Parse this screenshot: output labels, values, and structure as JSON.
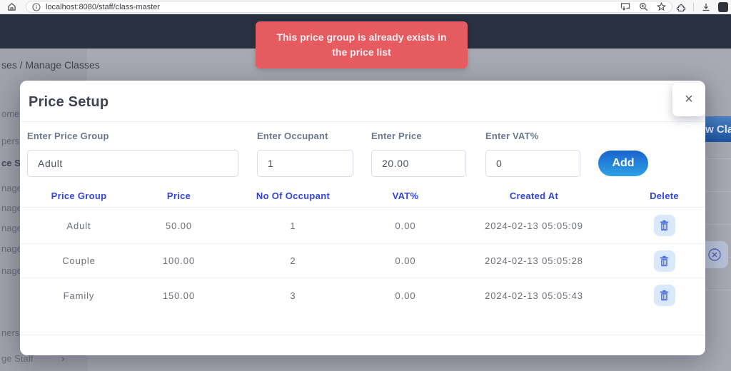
{
  "browser": {
    "url": "localhost:8080/staff/class-master",
    "icons": {
      "home": "house-outline",
      "site_info": "info-circle",
      "send": "send-to-device",
      "zoom": "magnifier-plus",
      "bookmark": "star-outline",
      "extensions": "puzzle-piece",
      "download": "download-arrow",
      "profile": "avatar-square"
    }
  },
  "toast": {
    "message": "This price group is already exists in the price list"
  },
  "page": {
    "breadcrumb": "ses / Manage Classes",
    "new_class_button_label": "w Class",
    "sidebar_items": [
      "omer",
      "persh",
      "ce S",
      "nage",
      "nage",
      "nage",
      "nage",
      "nage",
      "ners",
      "ge Staff"
    ],
    "sidebar_active_index": 2,
    "sidebar_chevron": "›",
    "dismiss_icon": "circle-x"
  },
  "modal": {
    "title": "Price Setup",
    "close_glyph": "×",
    "form": {
      "fields": [
        {
          "label": "Enter Price Group",
          "value": "Adult"
        },
        {
          "label": "Enter Occupant",
          "value": "1"
        },
        {
          "label": "Enter Price",
          "value": "20.00"
        },
        {
          "label": "Enter VAT%",
          "value": "0"
        }
      ],
      "add_label": "Add"
    },
    "table": {
      "headers": [
        "Price Group",
        "Price",
        "No Of Occupant",
        "VAT%",
        "Created At",
        "Delete"
      ],
      "delete_icon": "trash",
      "rows": [
        {
          "price_group": "Adult",
          "price": "50.00",
          "occupants": "1",
          "vat": "0.00",
          "created_at": "2024-02-13 05:05:09"
        },
        {
          "price_group": "Couple",
          "price": "100.00",
          "occupants": "2",
          "vat": "0.00",
          "created_at": "2024-02-13 05:05:28"
        },
        {
          "price_group": "Family",
          "price": "150.00",
          "occupants": "3",
          "vat": "0.00",
          "created_at": "2024-02-13 05:05:43"
        }
      ]
    }
  },
  "colors": {
    "accent_blue": "#3143e0",
    "toast_red": "#e55b60",
    "add_gradient": [
      "#1a63cd",
      "#2ea2e6"
    ],
    "delete_chip_bg": "#d9e8fb",
    "delete_icon_blue": "#4a6fe0",
    "navbar_dark": "#293040",
    "dimmed_page": "#a8a9b2"
  }
}
